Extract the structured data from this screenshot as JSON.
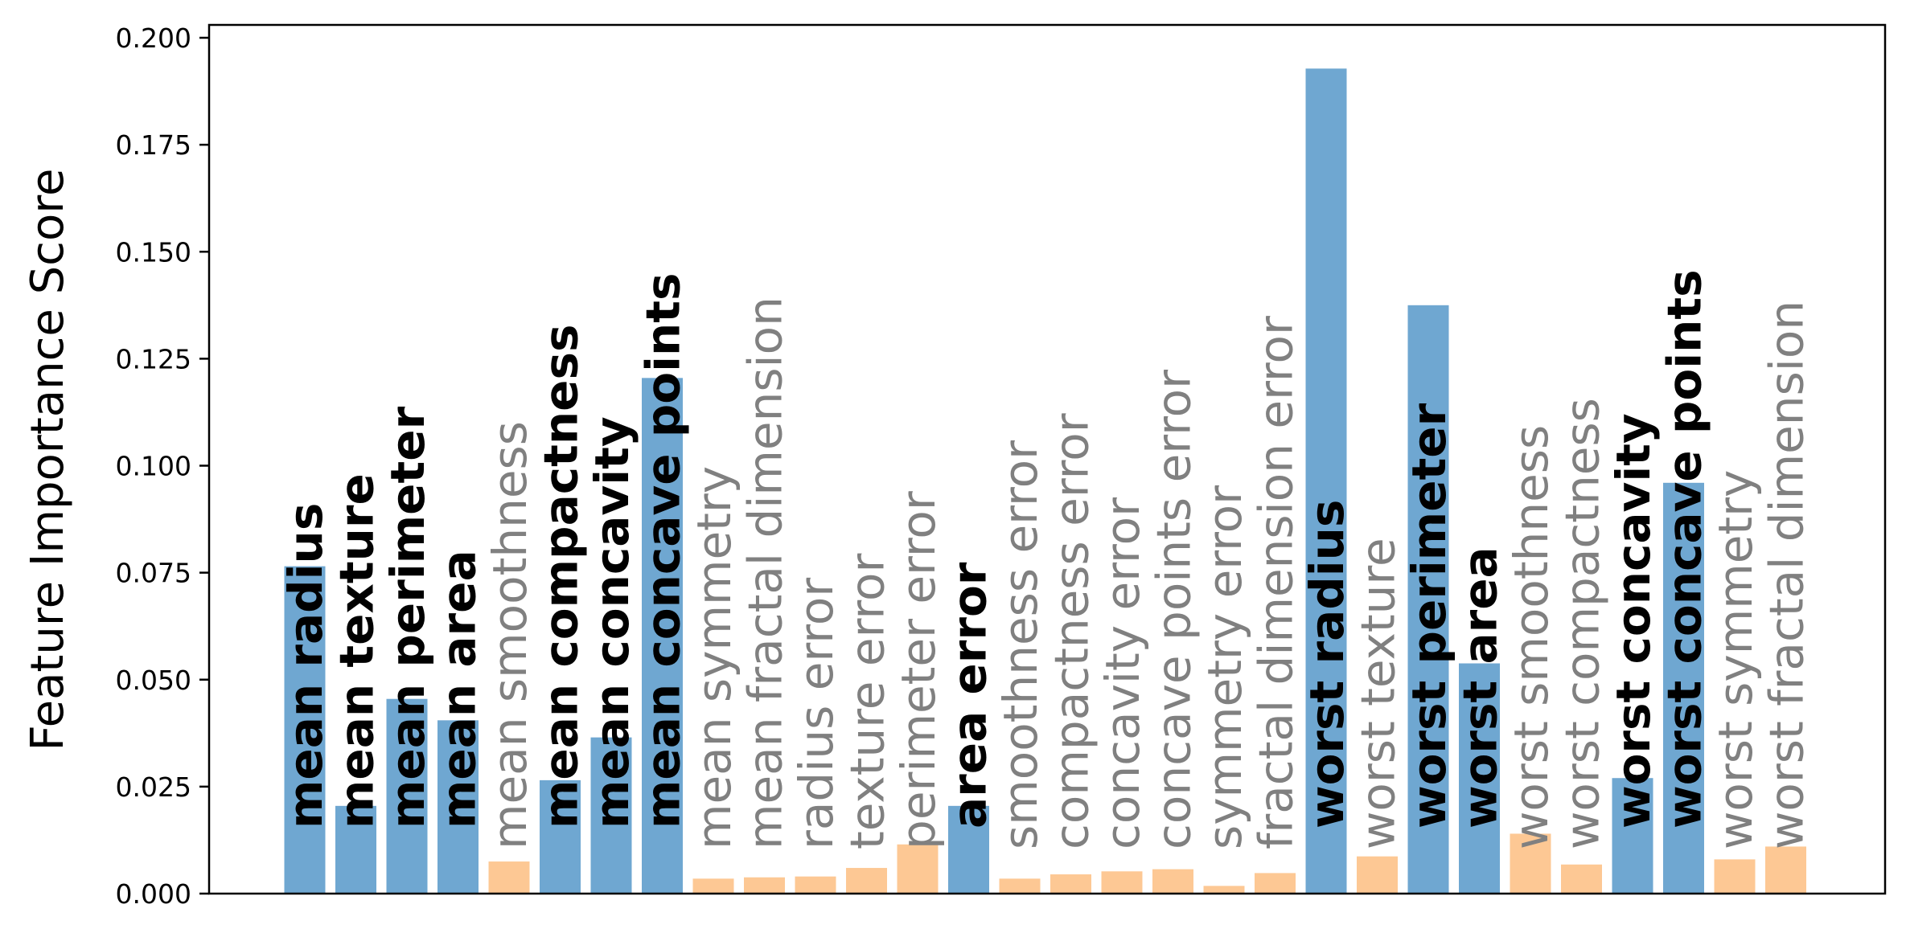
{
  "chart_data": {
    "type": "bar",
    "ylabel": "Feature Importance Score",
    "ylim": [
      0,
      0.2025
    ],
    "yticks": [
      "0.000",
      "0.025",
      "0.050",
      "0.075",
      "0.100",
      "0.125",
      "0.150",
      "0.175",
      "0.200"
    ],
    "colors": {
      "selected": "#6fa7d1",
      "unselected": "#fdc894",
      "selected_label": "#000000",
      "unselected_label": "#808080"
    },
    "bars": [
      {
        "label": "mean radius",
        "value": 0.0765,
        "selected": true
      },
      {
        "label": "mean texture",
        "value": 0.0205,
        "selected": true
      },
      {
        "label": "mean perimeter",
        "value": 0.0455,
        "selected": true
      },
      {
        "label": "mean area",
        "value": 0.0405,
        "selected": true
      },
      {
        "label": "mean smoothness",
        "value": 0.0075,
        "selected": false
      },
      {
        "label": "mean compactness",
        "value": 0.0265,
        "selected": true
      },
      {
        "label": "mean concavity",
        "value": 0.0365,
        "selected": true
      },
      {
        "label": "mean concave points",
        "value": 0.1205,
        "selected": true
      },
      {
        "label": "mean symmetry",
        "value": 0.0035,
        "selected": false
      },
      {
        "label": "mean fractal dimension",
        "value": 0.0038,
        "selected": false
      },
      {
        "label": "radius error",
        "value": 0.004,
        "selected": false
      },
      {
        "label": "texture error",
        "value": 0.006,
        "selected": false
      },
      {
        "label": "perimeter error",
        "value": 0.0115,
        "selected": false
      },
      {
        "label": "area error",
        "value": 0.0205,
        "selected": true
      },
      {
        "label": "smoothness error",
        "value": 0.0035,
        "selected": false
      },
      {
        "label": "compactness error",
        "value": 0.0045,
        "selected": false
      },
      {
        "label": "concavity error",
        "value": 0.0052,
        "selected": false
      },
      {
        "label": "concave points error",
        "value": 0.0057,
        "selected": false
      },
      {
        "label": "symmetry error",
        "value": 0.0018,
        "selected": false
      },
      {
        "label": "fractal dimension error",
        "value": 0.0048,
        "selected": false
      },
      {
        "label": "worst radius",
        "value": 0.1928,
        "selected": true
      },
      {
        "label": "worst texture",
        "value": 0.0087,
        "selected": false
      },
      {
        "label": "worst perimeter",
        "value": 0.1375,
        "selected": true
      },
      {
        "label": "worst area",
        "value": 0.0538,
        "selected": true
      },
      {
        "label": "worst smoothness",
        "value": 0.014,
        "selected": false
      },
      {
        "label": "worst compactness",
        "value": 0.0068,
        "selected": false
      },
      {
        "label": "worst concavity",
        "value": 0.027,
        "selected": true
      },
      {
        "label": "worst concave points",
        "value": 0.096,
        "selected": true
      },
      {
        "label": "worst symmetry",
        "value": 0.008,
        "selected": false
      },
      {
        "label": "worst fractal dimension",
        "value": 0.011,
        "selected": false
      }
    ]
  }
}
